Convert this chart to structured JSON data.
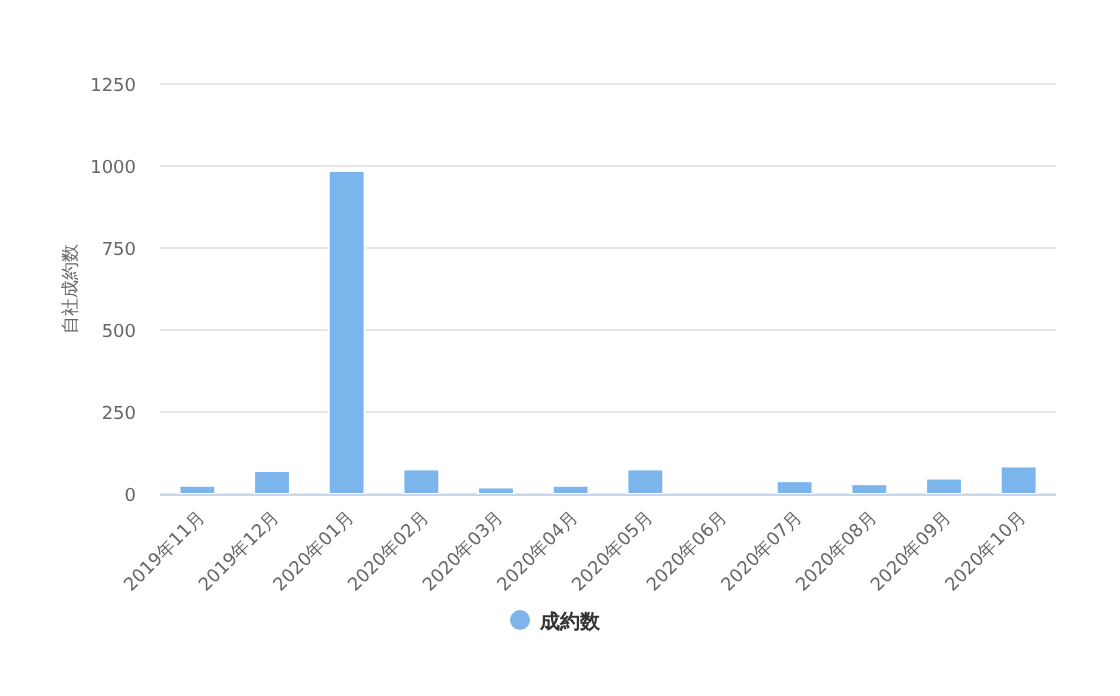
{
  "chart_data": {
    "type": "bar",
    "ylabel": "自社成約数",
    "categories": [
      "2019年11月",
      "2019年12月",
      "2020年01月",
      "2020年02月",
      "2020年03月",
      "2020年04月",
      "2020年05月",
      "2020年06月",
      "2020年07月",
      "2020年08月",
      "2020年09月",
      "2020年10月"
    ],
    "series": [
      {
        "name": "成約数",
        "color": "#7cb5ec",
        "values": [
          25,
          70,
          985,
          75,
          20,
          25,
          75,
          0,
          39,
          30,
          47,
          84
        ]
      }
    ],
    "ylim": [
      0,
      1250
    ],
    "yticks": [
      0,
      250,
      500,
      750,
      1000,
      1250
    ],
    "grid": "y",
    "legend": "bottom"
  }
}
